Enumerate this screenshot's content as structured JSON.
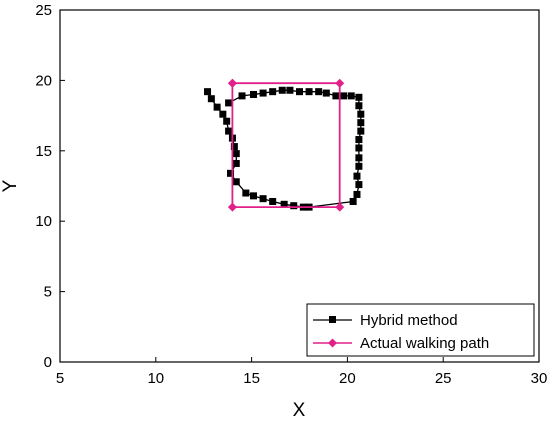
{
  "chart_data": {
    "type": "scatter",
    "title": "",
    "xlabel": "X",
    "ylabel": "Y",
    "xlim": [
      5,
      30
    ],
    "ylim": [
      0,
      25
    ],
    "xticks": [
      "5",
      "10",
      "15",
      "20",
      "25",
      "30"
    ],
    "yticks": [
      "0",
      "5",
      "10",
      "15",
      "20",
      "25"
    ],
    "grid": false,
    "legend_position": "bottom-right",
    "series": [
      {
        "name": "Hybrid method",
        "color": "#000000",
        "marker": "square",
        "points": [
          [
            12.7,
            19.2
          ],
          [
            12.9,
            18.7
          ],
          [
            13.2,
            18.1
          ],
          [
            13.5,
            17.6
          ],
          [
            13.7,
            17.1
          ],
          [
            13.8,
            16.4
          ],
          [
            14.0,
            15.9
          ],
          [
            14.1,
            15.3
          ],
          [
            14.2,
            14.8
          ],
          [
            14.2,
            14.1
          ],
          [
            13.9,
            13.4
          ],
          [
            14.2,
            12.8
          ],
          [
            14.7,
            12.0
          ],
          [
            15.1,
            11.8
          ],
          [
            15.6,
            11.6
          ],
          [
            16.1,
            11.4
          ],
          [
            16.7,
            11.2
          ],
          [
            17.2,
            11.1
          ],
          [
            17.7,
            11.0
          ],
          [
            18.0,
            11.0
          ],
          [
            20.3,
            11.4
          ],
          [
            20.5,
            11.9
          ],
          [
            20.6,
            12.6
          ],
          [
            20.5,
            13.2
          ],
          [
            20.6,
            13.9
          ],
          [
            20.6,
            14.5
          ],
          [
            20.6,
            15.2
          ],
          [
            20.6,
            15.8
          ],
          [
            20.7,
            16.4
          ],
          [
            20.7,
            17.0
          ],
          [
            20.7,
            17.6
          ],
          [
            20.6,
            18.2
          ],
          [
            20.6,
            18.8
          ],
          [
            20.2,
            18.9
          ],
          [
            19.8,
            18.9
          ],
          [
            19.4,
            18.9
          ],
          [
            18.9,
            19.1
          ],
          [
            18.5,
            19.2
          ],
          [
            18.0,
            19.2
          ],
          [
            17.5,
            19.2
          ],
          [
            17.0,
            19.3
          ],
          [
            16.6,
            19.3
          ],
          [
            16.1,
            19.2
          ],
          [
            15.6,
            19.1
          ],
          [
            15.1,
            19.0
          ],
          [
            14.5,
            18.9
          ],
          [
            13.8,
            18.4
          ]
        ]
      },
      {
        "name": "Actual walking path",
        "color": "#e0218a",
        "marker": "diamond",
        "points": [
          [
            14.0,
            19.8
          ],
          [
            19.6,
            19.8
          ],
          [
            19.6,
            11.0
          ],
          [
            14.0,
            11.0
          ],
          [
            14.0,
            19.8
          ]
        ]
      }
    ]
  }
}
